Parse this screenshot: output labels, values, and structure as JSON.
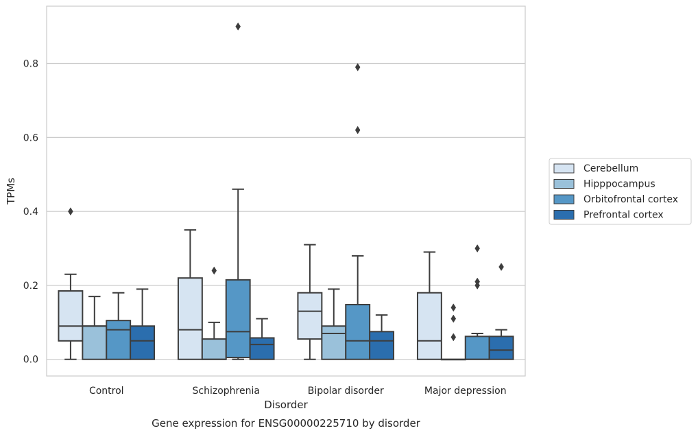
{
  "chart_data": {
    "type": "box",
    "title": "",
    "caption": "Gene expression for ENSG00000225710 by disorder",
    "xlabel": "Disorder",
    "ylabel": "TPMs",
    "ylim": [
      -0.045,
      0.955
    ],
    "yticks": [
      0.0,
      0.2,
      0.4,
      0.6,
      0.8
    ],
    "ytick_labels": [
      "0.0",
      "0.2",
      "0.4",
      "0.6",
      "0.8"
    ],
    "grid": "horizontal",
    "legend_position": "right",
    "categories": [
      "Control",
      "Schizophrenia",
      "Bipolar disorder",
      "Major depression"
    ],
    "series": [
      {
        "name": "Cerebellum",
        "color": "#d6e4f2",
        "boxes": [
          {
            "whisker_low": 0.0,
            "q1": 0.05,
            "median": 0.09,
            "q3": 0.185,
            "whisker_high": 0.23,
            "outliers": [
              0.4
            ]
          },
          {
            "whisker_low": 0.0,
            "q1": 0.0,
            "median": 0.08,
            "q3": 0.22,
            "whisker_high": 0.35,
            "outliers": []
          },
          {
            "whisker_low": 0.0,
            "q1": 0.055,
            "median": 0.13,
            "q3": 0.18,
            "whisker_high": 0.31,
            "outliers": []
          },
          {
            "whisker_low": 0.0,
            "q1": 0.0,
            "median": 0.05,
            "q3": 0.18,
            "whisker_high": 0.29,
            "outliers": []
          }
        ]
      },
      {
        "name": "Hipppocampus",
        "color": "#9ac1da",
        "boxes": [
          {
            "whisker_low": 0.0,
            "q1": 0.0,
            "median": 0.09,
            "q3": 0.09,
            "whisker_high": 0.17,
            "outliers": []
          },
          {
            "whisker_low": 0.0,
            "q1": 0.0,
            "median": 0.0,
            "q3": 0.055,
            "whisker_high": 0.1,
            "outliers": [
              0.24
            ]
          },
          {
            "whisker_low": 0.0,
            "q1": 0.0,
            "median": 0.07,
            "q3": 0.09,
            "whisker_high": 0.19,
            "outliers": []
          },
          {
            "whisker_low": 0.0,
            "q1": 0.0,
            "median": 0.0,
            "q3": 0.0,
            "whisker_high": 0.0,
            "outliers": [
              0.06,
              0.11,
              0.14
            ]
          }
        ]
      },
      {
        "name": "Orbitofrontal cortex",
        "color": "#5597c6",
        "boxes": [
          {
            "whisker_low": 0.0,
            "q1": 0.0,
            "median": 0.08,
            "q3": 0.105,
            "whisker_high": 0.18,
            "outliers": []
          },
          {
            "whisker_low": 0.0,
            "q1": 0.005,
            "median": 0.075,
            "q3": 0.215,
            "whisker_high": 0.46,
            "outliers": [
              0.9
            ]
          },
          {
            "whisker_low": 0.0,
            "q1": 0.0,
            "median": 0.05,
            "q3": 0.148,
            "whisker_high": 0.28,
            "outliers": [
              0.62,
              0.79
            ]
          },
          {
            "whisker_low": 0.0,
            "q1": 0.0,
            "median": 0.0,
            "q3": 0.062,
            "whisker_high": 0.07,
            "outliers": [
              0.2,
              0.21,
              0.3
            ]
          }
        ]
      },
      {
        "name": "Prefrontal cortex",
        "color": "#2b6eae",
        "boxes": [
          {
            "whisker_low": 0.0,
            "q1": 0.0,
            "median": 0.05,
            "q3": 0.09,
            "whisker_high": 0.19,
            "outliers": []
          },
          {
            "whisker_low": 0.0,
            "q1": 0.0,
            "median": 0.04,
            "q3": 0.058,
            "whisker_high": 0.11,
            "outliers": []
          },
          {
            "whisker_low": 0.0,
            "q1": 0.0,
            "median": 0.05,
            "q3": 0.075,
            "whisker_high": 0.12,
            "outliers": []
          },
          {
            "whisker_low": 0.0,
            "q1": 0.0,
            "median": 0.025,
            "q3": 0.062,
            "whisker_high": 0.08,
            "outliers": [
              0.25
            ]
          }
        ]
      }
    ]
  }
}
